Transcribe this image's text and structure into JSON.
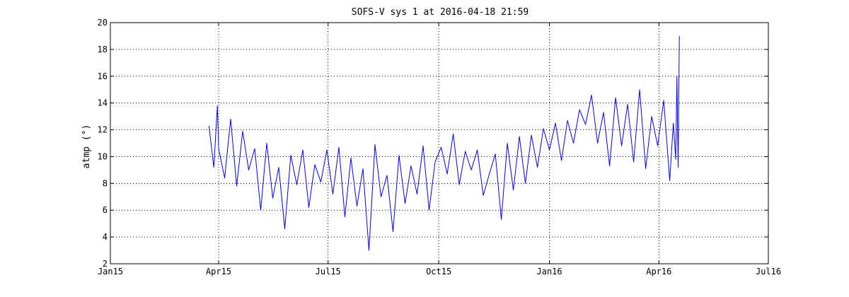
{
  "chart_data": {
    "type": "line",
    "title": "SOFS-V sys 1 at 2016-04-18 21:59",
    "xlabel": "",
    "ylabel": "atmp (°)",
    "xlim": [
      "2015-01-01",
      "2016-07-01"
    ],
    "ylim": [
      2,
      20
    ],
    "grid": true,
    "x_ticks": [
      {
        "date": "2015-01-01",
        "label": "Jan15"
      },
      {
        "date": "2015-04-01",
        "label": "Apr15"
      },
      {
        "date": "2015-07-01",
        "label": "Jul15"
      },
      {
        "date": "2015-10-01",
        "label": "Oct15"
      },
      {
        "date": "2016-01-01",
        "label": "Jan16"
      },
      {
        "date": "2016-04-01",
        "label": "Apr16"
      },
      {
        "date": "2016-07-01",
        "label": "Jul16"
      }
    ],
    "y_ticks": [
      2,
      4,
      6,
      8,
      10,
      12,
      14,
      16,
      18,
      20
    ],
    "series": [
      {
        "name": "",
        "color": "#0000ff",
        "x": [
          "2015-03-24",
          "2015-03-28",
          "2015-03-31",
          "2015-04-01",
          "2015-04-06",
          "2015-04-11",
          "2015-04-16",
          "2015-04-21",
          "2015-04-26",
          "2015-05-01",
          "2015-05-06",
          "2015-05-11",
          "2015-05-16",
          "2015-05-21",
          "2015-05-26",
          "2015-05-31",
          "2015-06-05",
          "2015-06-10",
          "2015-06-15",
          "2015-06-20",
          "2015-06-25",
          "2015-06-30",
          "2015-07-05",
          "2015-07-10",
          "2015-07-15",
          "2015-07-20",
          "2015-07-25",
          "2015-07-30",
          "2015-08-04",
          "2015-08-09",
          "2015-08-14",
          "2015-08-19",
          "2015-08-24",
          "2015-08-29",
          "2015-09-03",
          "2015-09-08",
          "2015-09-13",
          "2015-09-18",
          "2015-09-23",
          "2015-09-28",
          "2015-10-03",
          "2015-10-08",
          "2015-10-13",
          "2015-10-18",
          "2015-10-23",
          "2015-10-28",
          "2015-11-02",
          "2015-11-07",
          "2015-11-12",
          "2015-11-17",
          "2015-11-22",
          "2015-11-27",
          "2015-12-02",
          "2015-12-07",
          "2015-12-12",
          "2015-12-17",
          "2015-12-22",
          "2015-12-27",
          "2016-01-01",
          "2016-01-06",
          "2016-01-11",
          "2016-01-16",
          "2016-01-21",
          "2016-01-26",
          "2016-01-31",
          "2016-02-05",
          "2016-02-10",
          "2016-02-15",
          "2016-02-20",
          "2016-02-25",
          "2016-03-01",
          "2016-03-06",
          "2016-03-11",
          "2016-03-16",
          "2016-03-21",
          "2016-03-26",
          "2016-03-31",
          "2016-04-05",
          "2016-04-10",
          "2016-04-13",
          "2016-04-15",
          "2016-04-16",
          "2016-04-17",
          "2016-04-18"
        ],
        "y": [
          12.3,
          9.2,
          13.8,
          10.6,
          8.4,
          12.8,
          7.8,
          11.9,
          9.0,
          10.6,
          6.0,
          11.0,
          6.9,
          9.2,
          4.6,
          10.1,
          7.9,
          10.5,
          6.2,
          9.4,
          8.1,
          10.5,
          7.2,
          10.7,
          5.5,
          9.9,
          6.3,
          9.1,
          3.0,
          10.9,
          7.0,
          8.6,
          4.4,
          10.1,
          6.5,
          9.3,
          7.2,
          10.8,
          6.0,
          9.6,
          10.7,
          8.7,
          11.7,
          7.9,
          10.4,
          9.0,
          10.5,
          7.1,
          8.7,
          10.2,
          5.3,
          11.0,
          7.5,
          11.5,
          8.0,
          11.6,
          9.2,
          12.1,
          10.5,
          12.5,
          9.7,
          12.7,
          11.0,
          13.5,
          12.4,
          14.6,
          11.0,
          13.3,
          9.3,
          14.4,
          10.8,
          13.9,
          9.6,
          15.0,
          9.1,
          13.0,
          10.8,
          14.2,
          8.2,
          12.5,
          9.8,
          16.0,
          9.2,
          19.0
        ]
      }
    ]
  }
}
